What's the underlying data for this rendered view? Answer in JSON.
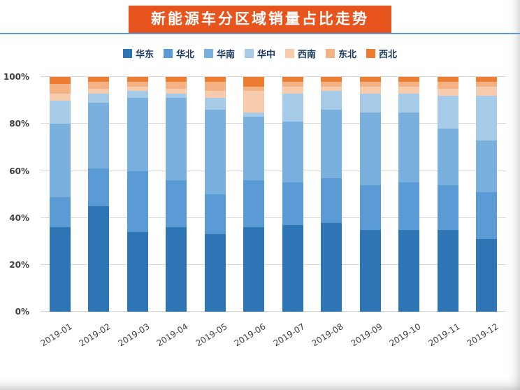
{
  "header": {
    "title": "新能源车分区域销量占比走势",
    "banner_color": "#e8541e",
    "underline_color": "#5b9bd5"
  },
  "chart_data": {
    "type": "bar",
    "subtype": "stacked-100-percent",
    "title": "新能源车分区域销量占比走势",
    "categories": [
      "2019-01",
      "2019-02",
      "2019-03",
      "2019-04",
      "2019-05",
      "2019-06",
      "2019-07",
      "2019-08",
      "2019-09",
      "2019-10",
      "2019-11",
      "2019-12"
    ],
    "series": [
      {
        "name": "华东",
        "color": "#2e75b6",
        "values": [
          36,
          45,
          34,
          36,
          33,
          36,
          37,
          38,
          35,
          35,
          35,
          31
        ]
      },
      {
        "name": "华北",
        "color": "#5b9bd5",
        "values": [
          13,
          16,
          26,
          20,
          17,
          20,
          18,
          19,
          19,
          20,
          19,
          20
        ]
      },
      {
        "name": "华南",
        "color": "#7ab0de",
        "values": [
          31,
          28,
          31,
          35,
          36,
          27,
          26,
          29,
          31,
          30,
          24,
          22
        ]
      },
      {
        "name": "华中",
        "color": "#a6cbe8",
        "values": [
          10,
          4,
          3,
          2,
          5,
          2,
          12,
          8,
          8,
          8,
          14,
          19
        ]
      },
      {
        "name": "西南",
        "color": "#f8cbad",
        "values": [
          3,
          2,
          2,
          2,
          3,
          9,
          3,
          2,
          3,
          3,
          3,
          4
        ]
      },
      {
        "name": "东北",
        "color": "#f4b183",
        "values": [
          4,
          3,
          2,
          3,
          4,
          2,
          2,
          2,
          2,
          2,
          3,
          2
        ]
      },
      {
        "name": "西北",
        "color": "#ed7d31",
        "values": [
          3,
          2,
          2,
          2,
          2,
          4,
          2,
          2,
          2,
          2,
          2,
          2
        ]
      }
    ],
    "y_ticks": [
      "0%",
      "20%",
      "40%",
      "60%",
      "80%",
      "100%"
    ],
    "ylim": [
      0,
      100
    ],
    "xlabel": "",
    "ylabel": "",
    "grid": true,
    "legend_position": "top"
  }
}
